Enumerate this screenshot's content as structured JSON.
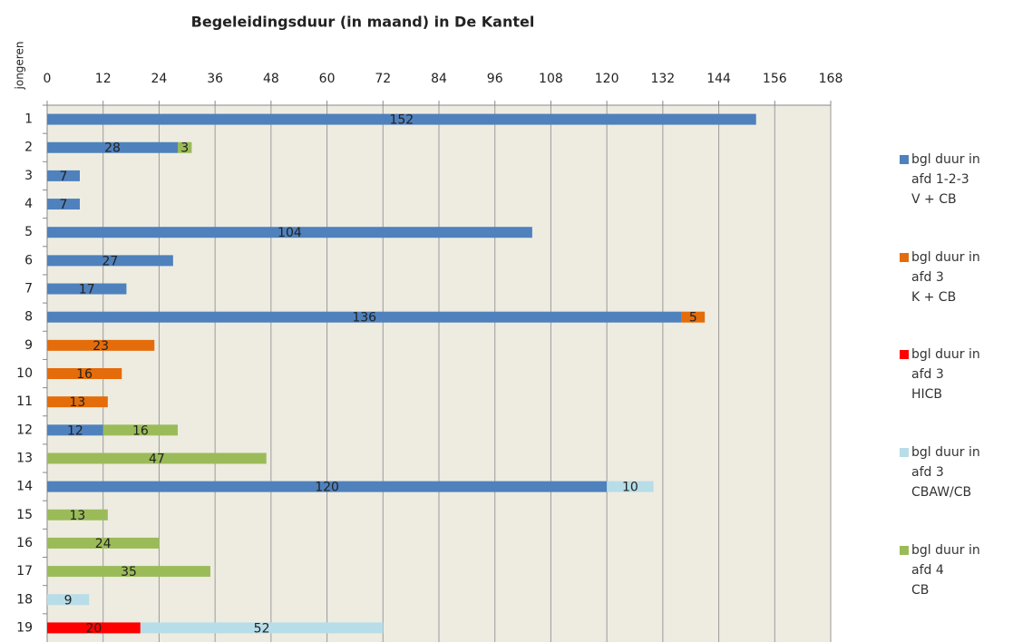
{
  "chart_data": {
    "type": "stacked_bar_horizontal",
    "title": "Begeleidingsduur (in maand) in De Kantel",
    "y_label": "jongeren",
    "categories": [
      "1",
      "2",
      "3",
      "4",
      "5",
      "6",
      "7",
      "8",
      "9",
      "10",
      "11",
      "12",
      "13",
      "14",
      "15",
      "16",
      "17",
      "18",
      "19"
    ],
    "series": [
      {
        "name": "bgl duur in\nafd 1-2-3\nV + CB",
        "color": "#4f81bd",
        "values": [
          152,
          28,
          7,
          7,
          104,
          27,
          17,
          136,
          null,
          null,
          null,
          12,
          null,
          120,
          null,
          null,
          null,
          null,
          null
        ]
      },
      {
        "name": "bgl duur in\nafd 3\nK + CB",
        "color": "#e46c0a",
        "values": [
          null,
          null,
          null,
          null,
          null,
          null,
          null,
          5,
          23,
          16,
          13,
          null,
          null,
          null,
          null,
          null,
          null,
          null,
          null
        ]
      },
      {
        "name": "bgl duur in\nafd 3\nHICB",
        "color": "#ff0000",
        "values": [
          null,
          null,
          null,
          null,
          null,
          null,
          null,
          null,
          null,
          null,
          null,
          null,
          null,
          null,
          null,
          null,
          null,
          null,
          20
        ]
      },
      {
        "name": "bgl duur in\nafd 3\nCBAW/CB",
        "color": "#b7dde8",
        "values": [
          null,
          null,
          null,
          null,
          null,
          null,
          null,
          null,
          null,
          null,
          null,
          null,
          null,
          10,
          null,
          null,
          null,
          9,
          52
        ]
      },
      {
        "name": "bgl duur in\nafd 4\nCB",
        "color": "#9bbb59",
        "values": [
          null,
          3,
          null,
          null,
          null,
          null,
          null,
          null,
          null,
          null,
          null,
          16,
          47,
          null,
          13,
          24,
          35,
          null,
          null
        ]
      }
    ],
    "xlim": [
      0,
      168
    ],
    "xticks": [
      0,
      12,
      24,
      36,
      48,
      60,
      72,
      84,
      96,
      108,
      120,
      132,
      144,
      156,
      168
    ],
    "grid": true,
    "legend": "right"
  }
}
